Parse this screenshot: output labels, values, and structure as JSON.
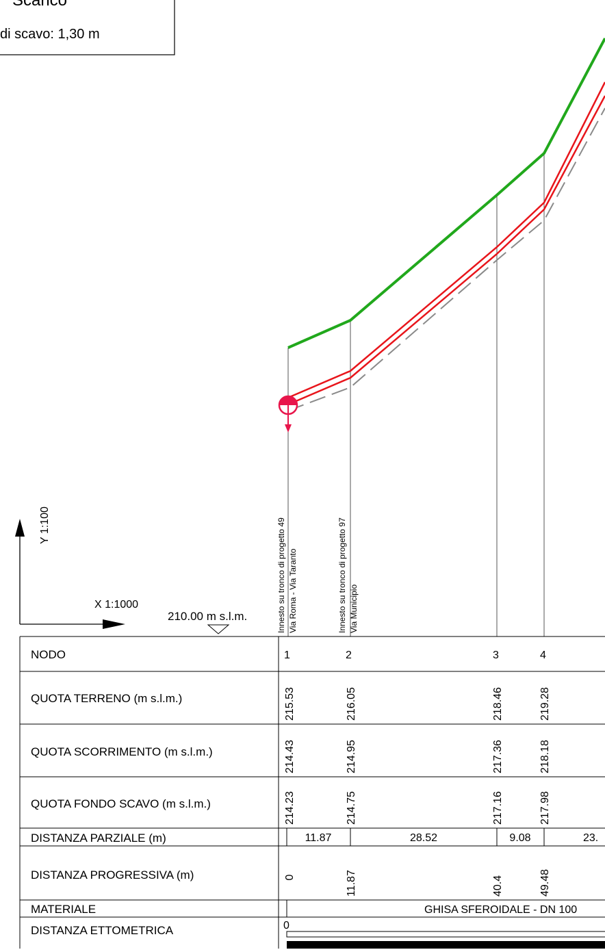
{
  "title_box": {
    "title": "Scarico",
    "depth_label": "di scavo: 1,30 m"
  },
  "axes": {
    "y_scale": "Y 1:100",
    "x_scale": "X 1:1000",
    "datum": "210.00 m s.l.m."
  },
  "colors": {
    "terrain": "#21a81c",
    "pipe": "#e8151b",
    "trench_bottom": "#8a8a8a",
    "outlet": "#e8154b"
  },
  "node_annotations": [
    {
      "line1": "Innesto su tronco di progetto 49",
      "line2": "Via Roma - Via Taranto"
    },
    {
      "line1": "Innesto su tronco di progetto 97",
      "line2": "Via Municipio"
    }
  ],
  "table": {
    "row_labels": {
      "nodo": "NODO",
      "quota_terreno": "QUOTA TERRENO (m s.l.m.)",
      "quota_scorrimento": "QUOTA SCORRIMENTO (m s.l.m.)",
      "quota_fondo": "QUOTA FONDO SCAVO (m s.l.m.)",
      "dist_parziale": "DISTANZA PARZIALE (m)",
      "dist_progressiva": "DISTANZA PROGRESSIVA (m)",
      "materiale": "MATERIALE",
      "dist_ettometrica": "DISTANZA ETTOMETRICA"
    },
    "nodes": [
      {
        "id": "1",
        "terreno": "215.53",
        "scorrimento": "214.43",
        "fondo": "214.23",
        "progressiva": "0"
      },
      {
        "id": "2",
        "terreno": "216.05",
        "scorrimento": "214.95",
        "fondo": "214.75",
        "progressiva": "11.87"
      },
      {
        "id": "3",
        "terreno": "218.46",
        "scorrimento": "217.36",
        "fondo": "217.16",
        "progressiva": "40.4"
      },
      {
        "id": "4",
        "terreno": "219.28",
        "scorrimento": "218.18",
        "fondo": "217.98",
        "progressiva": "49.48"
      }
    ],
    "partials": [
      "11.87",
      "28.52",
      "9.08",
      "23."
    ],
    "material": "GHISA SFEROIDALE - DN 100",
    "ettometrica_start": "0"
  }
}
